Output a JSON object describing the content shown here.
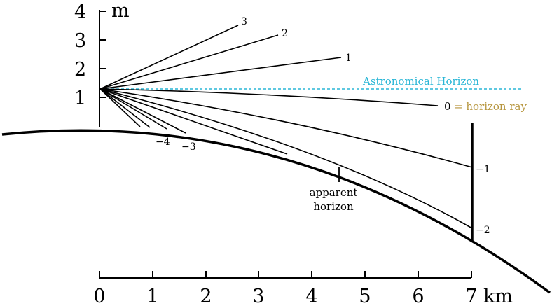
{
  "vertical_axis": {
    "unit": "m",
    "ticks": [
      "1",
      "2",
      "3",
      "4"
    ]
  },
  "horizontal_axis": {
    "unit": "km",
    "ticks": [
      "0",
      "1",
      "2",
      "3",
      "4",
      "5",
      "6",
      "7"
    ]
  },
  "rays": {
    "up": [
      "3",
      "2",
      "1"
    ],
    "horizon": {
      "number": "0",
      "description": "= horizon ray"
    },
    "ground_hits": [
      "−4",
      "−3"
    ],
    "pole_hits": [
      "−1",
      "−2"
    ]
  },
  "astronomical_horizon": "Astronomical Horizon",
  "apparent_horizon": {
    "line1": "apparent",
    "line2": "horizon"
  },
  "colors": {
    "astronomical_horizon": "#29b6d6",
    "horizon_ray_label": "#b7963f",
    "ink": "#000000"
  }
}
